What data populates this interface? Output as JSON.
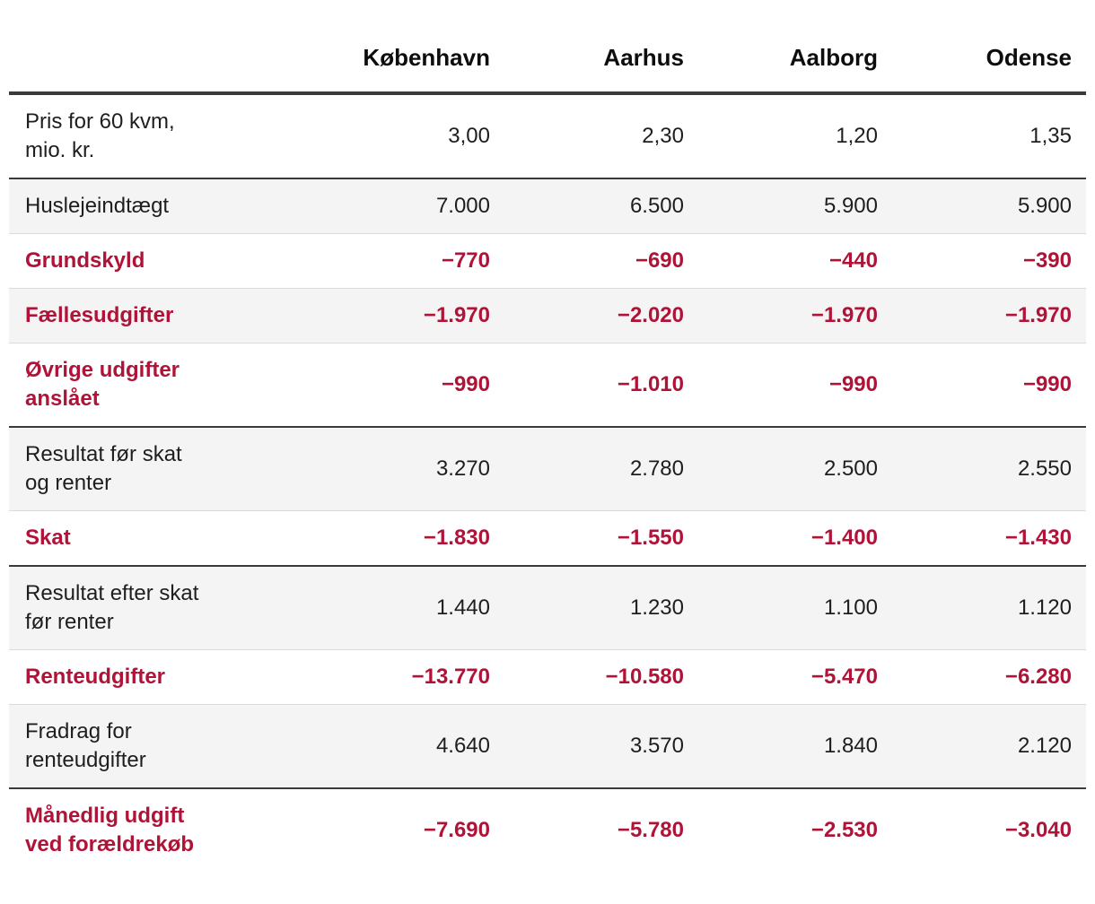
{
  "colors": {
    "expense_red": "#b01338",
    "rule_dark": "#3a3a3a",
    "rule_light": "#dbdbdb",
    "row_shade": "#f4f4f4",
    "text": "#1e1e1e"
  },
  "table": {
    "columns": [
      "København",
      "Aarhus",
      "Aalborg",
      "Odense"
    ],
    "rows": [
      {
        "label": "Pris for 60 kvm,\nmio. kr.",
        "values": [
          "3,00",
          "2,30",
          "1,20",
          "1,35"
        ],
        "expense": false,
        "section_end": true
      },
      {
        "label": "Huslejeindtægt",
        "values": [
          "7.000",
          "6.500",
          "5.900",
          "5.900"
        ],
        "expense": false,
        "section_end": false
      },
      {
        "label": "Grundskyld",
        "values": [
          "−770",
          "−690",
          "−440",
          "−390"
        ],
        "expense": true,
        "section_end": false
      },
      {
        "label": "Fællesudgifter",
        "values": [
          "−1.970",
          "−2.020",
          "−1.970",
          "−1.970"
        ],
        "expense": true,
        "section_end": false
      },
      {
        "label": "Øvrige udgifter\nanslået",
        "values": [
          "−990",
          "−1.010",
          "−990",
          "−990"
        ],
        "expense": true,
        "section_end": true
      },
      {
        "label": "Resultat før skat\nog renter",
        "values": [
          "3.270",
          "2.780",
          "2.500",
          "2.550"
        ],
        "expense": false,
        "section_end": false
      },
      {
        "label": "Skat",
        "values": [
          "−1.830",
          "−1.550",
          "−1.400",
          "−1.430"
        ],
        "expense": true,
        "section_end": true
      },
      {
        "label": "Resultat efter skat\nfør renter",
        "values": [
          "1.440",
          "1.230",
          "1.100",
          "1.120"
        ],
        "expense": false,
        "section_end": false
      },
      {
        "label": "Renteudgifter",
        "values": [
          "−13.770",
          "−10.580",
          "−5.470",
          "−6.280"
        ],
        "expense": true,
        "section_end": false
      },
      {
        "label": "Fradrag for\nrenteudgifter",
        "values": [
          "4.640",
          "3.570",
          "1.840",
          "2.120"
        ],
        "expense": false,
        "section_end": true
      },
      {
        "label": "Månedlig udgift\nved forældrekøb",
        "values": [
          "−7.690",
          "−5.780",
          "−2.530",
          "−3.040"
        ],
        "expense": true,
        "section_end": false
      }
    ]
  },
  "chart_data": {
    "type": "table",
    "columns": [
      "København",
      "Aarhus",
      "Aalborg",
      "Odense"
    ],
    "rows": [
      {
        "label": "Pris for 60 kvm, mio. kr.",
        "values": [
          3.0,
          2.3,
          1.2,
          1.35
        ]
      },
      {
        "label": "Huslejeindtægt",
        "values": [
          7000,
          6500,
          5900,
          5900
        ]
      },
      {
        "label": "Grundskyld",
        "values": [
          -770,
          -690,
          -440,
          -390
        ]
      },
      {
        "label": "Fællesudgifter",
        "values": [
          -1970,
          -2020,
          -1970,
          -1970
        ]
      },
      {
        "label": "Øvrige udgifter anslået",
        "values": [
          -990,
          -1010,
          -990,
          -990
        ]
      },
      {
        "label": "Resultat før skat og renter",
        "values": [
          3270,
          2780,
          2500,
          2550
        ]
      },
      {
        "label": "Skat",
        "values": [
          -1830,
          -1550,
          -1400,
          -1430
        ]
      },
      {
        "label": "Resultat efter skat før renter",
        "values": [
          1440,
          1230,
          1100,
          1120
        ]
      },
      {
        "label": "Renteudgifter",
        "values": [
          -13770,
          -10580,
          -5470,
          -6280
        ]
      },
      {
        "label": "Fradrag for renteudgifter",
        "values": [
          4640,
          3570,
          1840,
          2120
        ]
      },
      {
        "label": "Månedlig udgift ved forældrekøb",
        "values": [
          -7690,
          -5780,
          -2530,
          -3040
        ]
      }
    ]
  }
}
